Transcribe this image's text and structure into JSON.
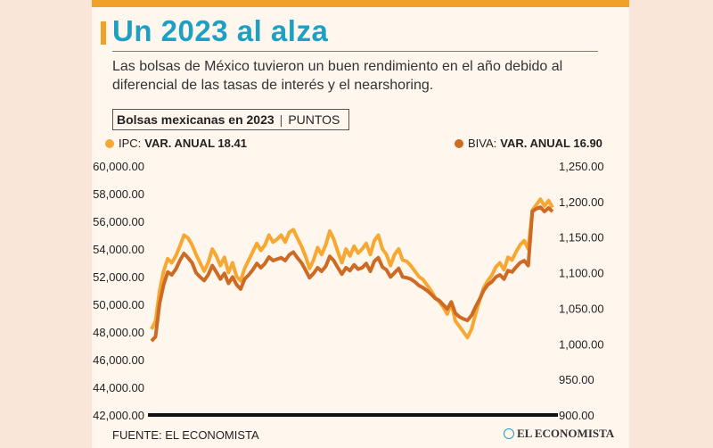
{
  "header": {
    "title": "Un 2023 al alza",
    "subtitle": "Las bolsas de México tuvieron un buen rendimiento en el año debido al diferencial de las tasas de interés y el nearshoring."
  },
  "chart_label": {
    "name": "Bolsas mexicanas en 2023",
    "unit": "PUNTOS"
  },
  "legend": {
    "ipc": {
      "name": "IPC:",
      "note": "VAR. ANUAL 18.41"
    },
    "biva": {
      "name": "BIVA:",
      "note": "VAR. ANUAL 16.90"
    }
  },
  "footer": {
    "source": "FUENTE: EL ECONOMISTA",
    "logo": "EL ECONOMISTA"
  },
  "colors": {
    "ipc": "#f6a832",
    "biva": "#cd6a24",
    "title": "#1f9fc1",
    "accent": "#f0a226"
  },
  "chart_data": {
    "type": "line",
    "title": "Bolsas mexicanas en 2023",
    "y_left": {
      "ylim": [
        42000,
        60000
      ],
      "ticks": [
        "60,000.00",
        "58,000.00",
        "56,000.00",
        "54,000.00",
        "52,000.00",
        "50,000.00",
        "48,000.00",
        "46,000.00",
        "44,000.00",
        "42,000.00"
      ]
    },
    "y_right": {
      "ylim": [
        900,
        1250
      ],
      "ticks": [
        "1,250.00",
        "1,200.00",
        "1,150.00",
        "1,100.00",
        "1,050.00",
        "1,000.00",
        "950.00",
        "900.00"
      ]
    },
    "x_range": [
      "2023-01-02",
      "2023-12-29"
    ],
    "series": [
      {
        "name": "IPC",
        "axis": "left",
        "color": "#f6a832",
        "values": [
          48200,
          48800,
          51000,
          52400,
          53300,
          53000,
          53500,
          54200,
          55000,
          54800,
          54300,
          53600,
          53000,
          52400,
          53000,
          54000,
          53500,
          52800,
          53400,
          52300,
          53000,
          52000,
          51700,
          52600,
          53200,
          53800,
          54400,
          53900,
          54300,
          55000,
          54500,
          54700,
          55000,
          54500,
          55200,
          55400,
          54800,
          54200,
          53500,
          52600,
          53200,
          54100,
          53600,
          54300,
          55300,
          54700,
          53800,
          53000,
          54000,
          53500,
          54200,
          53700,
          54000,
          54400,
          53600,
          54600,
          55000,
          54000,
          53600,
          52800,
          53600,
          54000,
          53200,
          53100,
          52800,
          52400,
          52000,
          51800,
          51400,
          51000,
          50500,
          50200,
          49800,
          49300,
          50100,
          48800,
          48400,
          48000,
          47600,
          48200,
          49300,
          50300,
          51200,
          51700,
          52100,
          52700,
          53000,
          52500,
          53400,
          53200,
          53800,
          54300,
          54600,
          54000,
          56800,
          57200,
          57600,
          57100,
          57500,
          57000
        ]
      },
      {
        "name": "BIVA",
        "axis": "right",
        "color": "#cd6a24",
        "values": [
          1004,
          1010,
          1057,
          1083,
          1101,
          1097,
          1105,
          1117,
          1127,
          1121,
          1114,
          1100,
          1094,
          1089,
          1097,
          1110,
          1101,
          1091,
          1099,
          1085,
          1094,
          1083,
          1077,
          1091,
          1097,
          1104,
          1113,
          1107,
          1113,
          1122,
          1117,
          1119,
          1121,
          1117,
          1125,
          1129,
          1121,
          1114,
          1104,
          1093,
          1099,
          1107,
          1102,
          1109,
          1123,
          1117,
          1107,
          1098,
          1107,
          1103,
          1111,
          1105,
          1107,
          1113,
          1102,
          1116,
          1121,
          1108,
          1104,
          1094,
          1100,
          1106,
          1094,
          1093,
          1091,
          1087,
          1082,
          1079,
          1075,
          1070,
          1064,
          1061,
          1055,
          1049,
          1059,
          1043,
          1038,
          1035,
          1033,
          1040,
          1052,
          1063,
          1075,
          1083,
          1087,
          1094,
          1097,
          1091,
          1103,
          1101,
          1108,
          1114,
          1117,
          1110,
          1186,
          1190,
          1192,
          1186,
          1191,
          1186
        ]
      }
    ],
    "grid": false,
    "legend_position": "top"
  }
}
